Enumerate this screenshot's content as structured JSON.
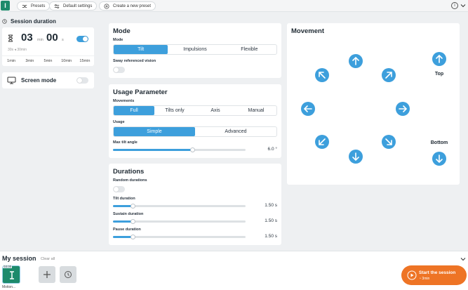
{
  "topbar": {
    "presets": "Presets",
    "default_settings": "Default settings",
    "new_preset": "Create a new preset"
  },
  "session": {
    "title": "Session duration",
    "minutes": "03",
    "min_unit": "min",
    "seconds": "00",
    "sec_unit": "s",
    "range_min": "30s",
    "range_max": "30min",
    "quick": [
      "1min",
      "3min",
      "5min",
      "10min",
      "15min"
    ],
    "enabled": true
  },
  "screen_mode": {
    "label": "Screen mode",
    "enabled": false
  },
  "mode": {
    "title": "Mode",
    "mode_label": "Mode",
    "options": [
      "Tilt",
      "Impulsions",
      "Flexible"
    ],
    "selected": "Tilt",
    "sway_label": "Sway referenced vision",
    "sway_enabled": false
  },
  "usage": {
    "title": "Usage Parameter",
    "movements_label": "Movements",
    "movement_options": [
      "Full",
      "Tilts only",
      "Axis",
      "Manual"
    ],
    "movement_selected": "Full",
    "usage_label": "Usage",
    "usage_options": [
      "Simple",
      "Advanced"
    ],
    "usage_selected": "Simple",
    "max_tilt_label": "Max tilt angle",
    "max_tilt_value": "6.0 °",
    "max_tilt_fraction": 0.6
  },
  "durations": {
    "title": "Durations",
    "random_label": "Random durations",
    "random_enabled": false,
    "tilt_label": "Tilt duration",
    "tilt_value": "1.50 s",
    "sustain_label": "Sustain duration",
    "sustain_value": "1.50 s",
    "pause_label": "Pause duration",
    "pause_value": "1.50 s",
    "fraction": 0.15
  },
  "movement": {
    "title": "Movement",
    "top_label": "Top",
    "bottom_label": "Bottom",
    "arrow_color": "#3d9fdc"
  },
  "my_session": {
    "title": "My session",
    "clear": "Clear all",
    "item_time": "03:00",
    "item_label": "Motion..."
  },
  "start": {
    "label": "Start the session",
    "duration": "3min",
    "color": "#ee7425"
  }
}
